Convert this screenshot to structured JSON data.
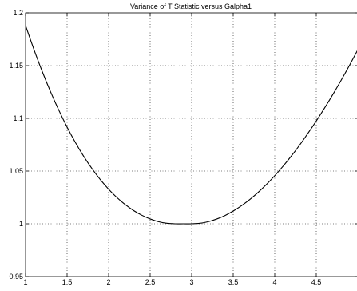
{
  "chart_data": {
    "type": "line",
    "title": "Variance of T Statistic versus Galpha1",
    "xlabel": "",
    "ylabel": "",
    "xlim": [
      1,
      5
    ],
    "ylim": [
      0.95,
      1.2
    ],
    "xticks": [
      1,
      1.5,
      2,
      2.5,
      3,
      3.5,
      4,
      4.5
    ],
    "xtick_labels": [
      "1",
      "1.5",
      "2",
      "2.5",
      "3",
      "3.5",
      "4",
      "4.5"
    ],
    "yticks": [
      0.95,
      1,
      1.05,
      1.1,
      1.15,
      1.2
    ],
    "ytick_labels": [
      "0.95",
      "1",
      "1.05",
      "1.1",
      "1.15",
      "1.2"
    ],
    "grid": true,
    "series": [
      {
        "color": "#000000",
        "x": [
          1,
          1.1,
          1.2,
          1.3,
          1.4,
          1.5,
          1.6,
          1.7,
          1.8,
          1.9,
          2,
          2.1,
          2.2,
          2.3,
          2.4,
          2.5,
          2.6,
          2.7,
          2.8,
          2.9,
          3,
          3.1,
          3.2,
          3.3,
          3.4,
          3.5,
          3.6,
          3.7,
          3.8,
          3.9,
          4,
          4.1,
          4.2,
          4.3,
          4.4,
          4.5,
          4.6,
          4.7,
          4.8,
          4.9,
          5
        ],
        "y": [
          1.188,
          1.1655,
          1.1446,
          1.1254,
          1.1078,
          1.0917,
          1.0771,
          1.064,
          1.0523,
          1.0419,
          1.0328,
          1.0249,
          1.0182,
          1.0126,
          1.0081,
          1.0046,
          1.002,
          1.0005,
          1.0,
          1.0,
          1.0,
          1.0005,
          1.002,
          1.0045,
          1.0078,
          1.0121,
          1.0172,
          1.0231,
          1.0298,
          1.0373,
          1.0456,
          1.0546,
          1.0643,
          1.0747,
          1.0858,
          1.0975,
          1.1098,
          1.1227,
          1.1362,
          1.1503,
          1.165
        ]
      }
    ]
  }
}
